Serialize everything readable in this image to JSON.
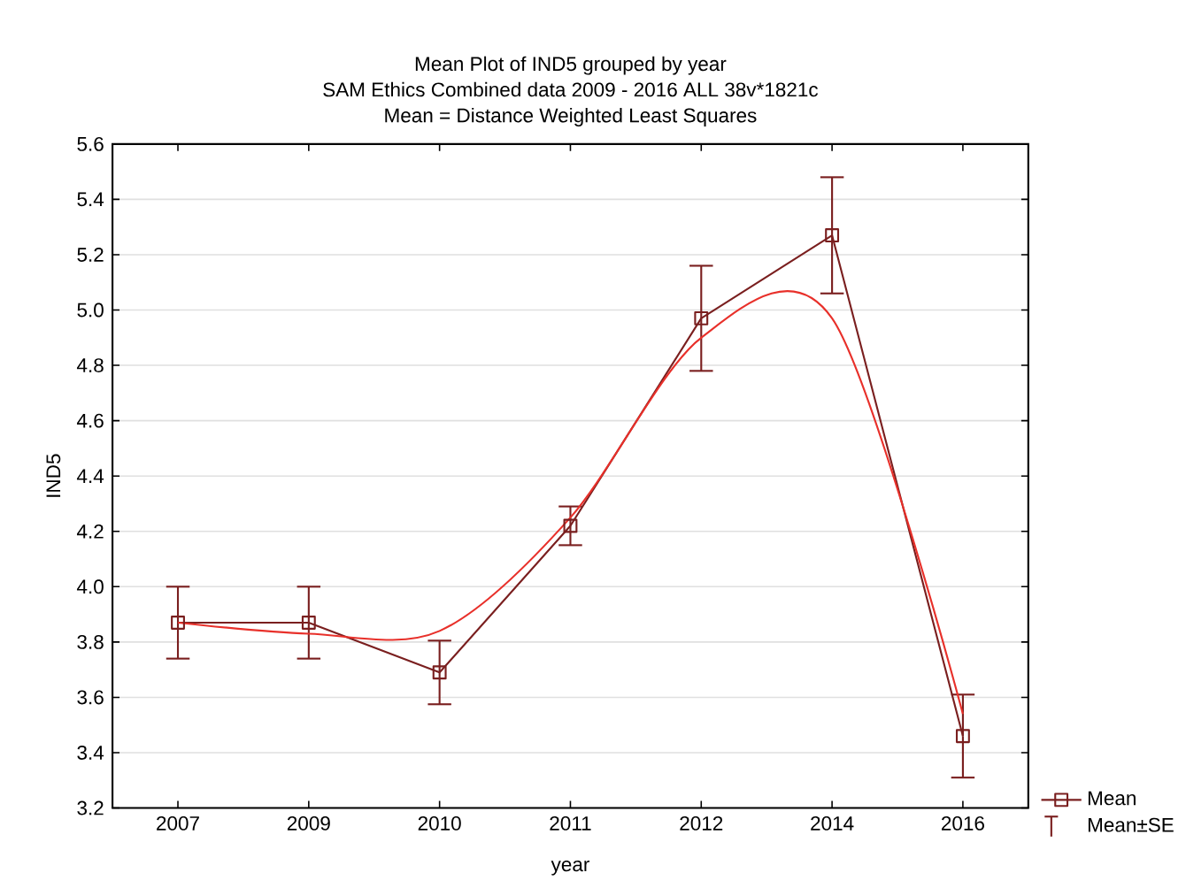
{
  "chart_data": {
    "type": "line",
    "title": "Mean Plot of IND5 grouped by  year",
    "subtitle": "SAM Ethics Combined data 2009 - 2016 ALL 38v*1821c",
    "annotations": [
      "Mean = Distance Weighted Least Squares",
      "Mean±SE"
    ],
    "xlabel": "year",
    "ylabel": "IND5",
    "categories": [
      "2007",
      "2009",
      "2010",
      "2011",
      "2012",
      "2014",
      "2016"
    ],
    "ylim": [
      3.2,
      5.6
    ],
    "yticks": [
      3.2,
      3.4,
      3.6,
      3.8,
      {
        "value": 4,
        "label": "4.0"
      },
      4.2,
      4.4,
      4.6,
      4.8,
      {
        "value": 5,
        "label": "5.0"
      },
      5.2,
      5.4,
      5.6
    ],
    "grid": "y",
    "legend": "bottom right",
    "series": [
      {
        "name": "Mean",
        "color": "#7a1f1f",
        "marker": "square",
        "values": [
          3.87,
          3.87,
          3.69,
          4.22,
          4.97,
          5.27,
          3.46
        ],
        "errors": [
          0.13,
          0.13,
          0.115,
          0.07,
          0.19,
          0.21,
          0.15
        ]
      },
      {
        "type": "line",
        "color": "#e8302a",
        "marker": "none",
        "values": [
          3.87,
          3.83,
          3.84,
          4.25,
          4.9,
          4.97,
          3.54
        ]
      }
    ]
  }
}
